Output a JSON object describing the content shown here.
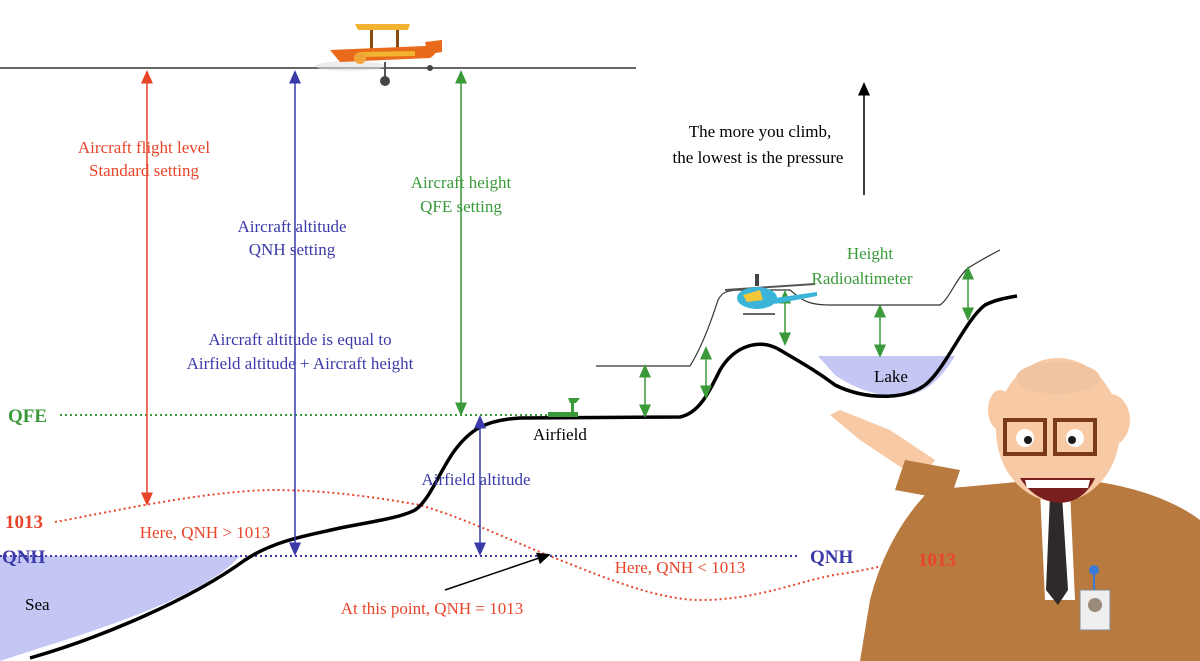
{
  "colors": {
    "red": "#e8452a",
    "blue": "#3a3aa8",
    "green": "#3a9a3a",
    "sea": "#c4c6f4",
    "lake": "#c4c6f4",
    "ground": "#000000"
  },
  "labels": {
    "flight_level_1": "Aircraft flight level",
    "flight_level_2": "Standard setting",
    "altitude_1": "Aircraft altitude",
    "altitude_2": "QNH setting",
    "height_1": "Aircraft height",
    "height_2": "QFE setting",
    "climb_1": "The more you climb,",
    "climb_2": "the lowest is the pressure",
    "radio_1": "Height",
    "radio_2": "Radioaltimeter",
    "equal_1": "Aircraft altitude is equal to",
    "equal_2": "Airfield altitude + Aircraft height",
    "qfe": "QFE",
    "airfield": "Airfield",
    "lake": "Lake",
    "airfield_altitude": "Airfield altitude",
    "p1013_left": "1013",
    "p1013_right": "1013",
    "qnh_left": "QNH",
    "qnh_right": "QNH",
    "here_greater": "Here, QNH > 1013",
    "here_less": "Here, QNH < 1013",
    "sea": "Sea",
    "at_point": "At this point, QNH = 1013"
  },
  "icons": {
    "plane": "biplane-icon",
    "helicopter": "helicopter-icon",
    "windsock": "windsock-icon",
    "presenter": "presenter-cartoon"
  }
}
